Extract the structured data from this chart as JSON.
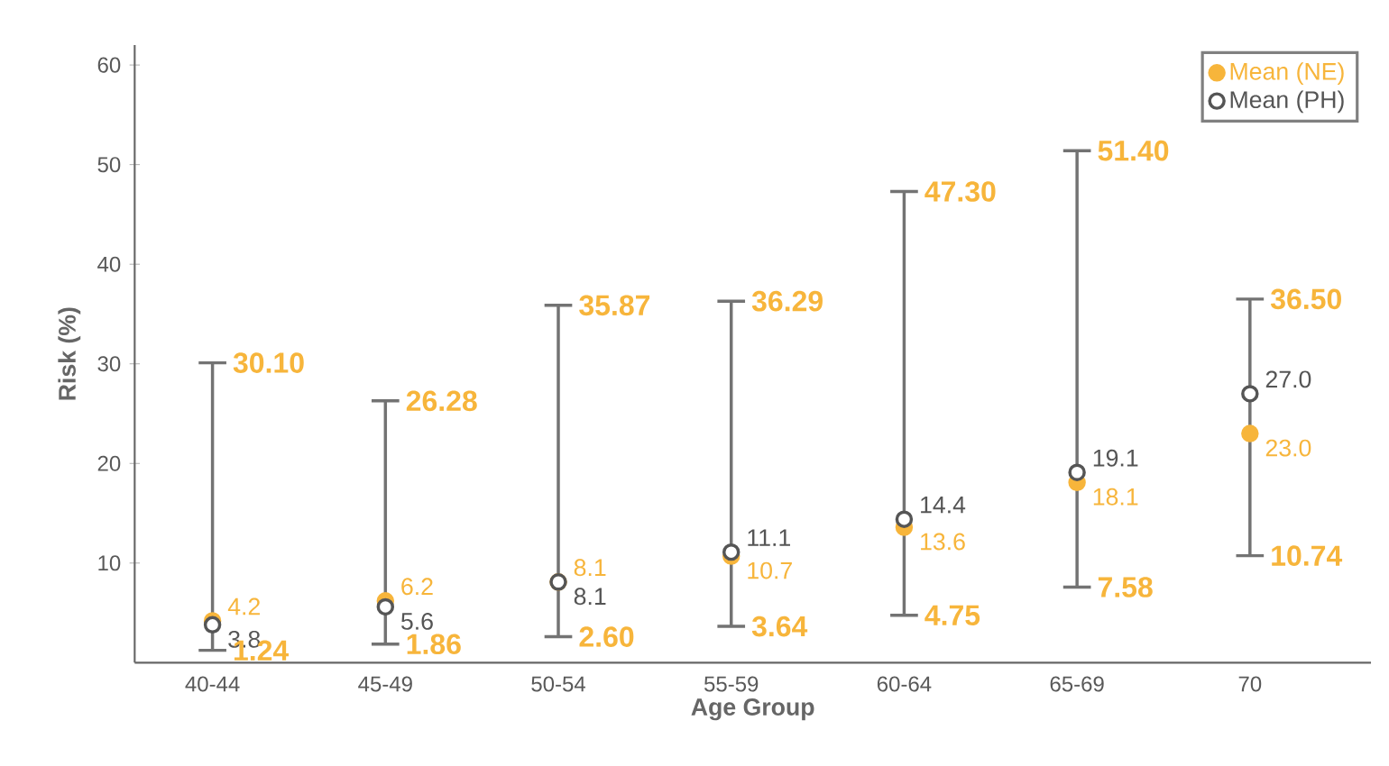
{
  "chart_data": {
    "type": "scatter",
    "xlabel": "Age Group",
    "ylabel": "Risk (%)",
    "categories": [
      "40-44",
      "45-49",
      "50-54",
      "55-59",
      "60-64",
      "65-69",
      "70"
    ],
    "series": [
      {
        "name": "Mean (NE)",
        "color": "#f7b53b",
        "values": [
          4.2,
          6.2,
          8.1,
          10.7,
          13.6,
          18.1,
          23.0
        ],
        "value_labels": [
          "4.2",
          "6.2",
          "8.1",
          "10.7",
          "13.6",
          "18.1",
          "23.0"
        ],
        "errors": [
          [
            1.24,
            30.1
          ],
          [
            1.86,
            26.28
          ],
          [
            2.6,
            35.87
          ],
          [
            3.64,
            36.29
          ],
          [
            4.75,
            47.3
          ],
          [
            7.58,
            51.4
          ],
          [
            10.74,
            36.5
          ]
        ]
      },
      {
        "name": "Mean (PH)",
        "color": "#555555",
        "values": [
          3.8,
          5.6,
          8.1,
          11.1,
          14.4,
          19.1,
          27.0
        ],
        "value_labels": [
          "3.8",
          "5.6",
          "8.1",
          "11.1",
          "14.4",
          "19.1",
          "27.0"
        ]
      }
    ],
    "data_labels": true,
    "marker": "circle",
    "legend": "top right",
    "grid": false,
    "ylim": [
      0,
      62
    ],
    "yticks": [
      10,
      20,
      30,
      40,
      50,
      60
    ],
    "annotations": [
      {
        "text": "30.10",
        "x": "40-44",
        "y": 30.1
      },
      {
        "text": "1.24",
        "x": "40-44",
        "y": 1.24
      },
      {
        "text": "26.28",
        "x": "45-49",
        "y": 26.28
      },
      {
        "text": "1.86",
        "x": "45-49",
        "y": 1.86
      },
      {
        "text": "35.87",
        "x": "50-54",
        "y": 35.87
      },
      {
        "text": "2.60",
        "x": "50-54",
        "y": 2.6
      },
      {
        "text": "36.29",
        "x": "55-59",
        "y": 36.29
      },
      {
        "text": "3.64",
        "x": "55-59",
        "y": 3.64
      },
      {
        "text": "47.30",
        "x": "60-64",
        "y": 47.3
      },
      {
        "text": "4.75",
        "x": "60-64",
        "y": 4.75
      },
      {
        "text": "51.40",
        "x": "65-69",
        "y": 51.4
      },
      {
        "text": "7.58",
        "x": "65-69",
        "y": 7.58
      },
      {
        "text": "36.50",
        "x": "70",
        "y": 36.5
      },
      {
        "text": "10.74",
        "x": "70",
        "y": 10.74
      }
    ]
  }
}
